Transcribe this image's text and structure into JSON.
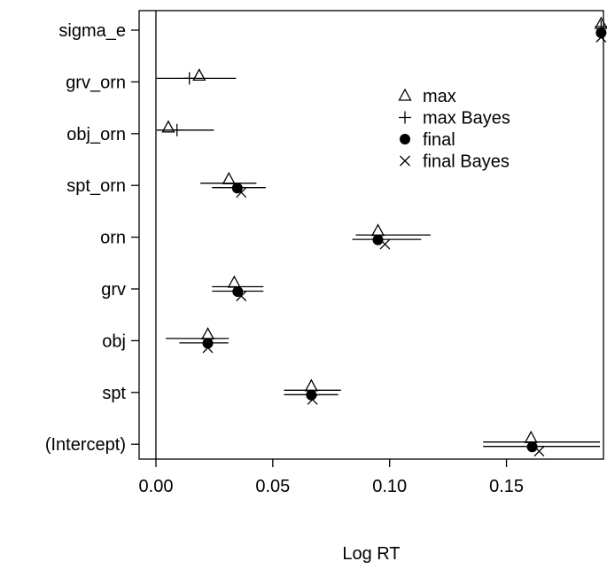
{
  "chart_data": {
    "type": "scatter",
    "title": "",
    "xlabel": "Log RT",
    "ylabel": "",
    "xlim": [
      -0.0072,
      0.1915
    ],
    "xticks": [
      0.0,
      0.05,
      0.1,
      0.15
    ],
    "xtick_labels": [
      "0.00",
      "0.05",
      "0.10",
      "0.15"
    ],
    "reference_line_x": 0,
    "categories": [
      "sigma_e",
      "grv_orn",
      "obj_orn",
      "spt_orn",
      "orn",
      "grv",
      "obj",
      "spt",
      "(Intercept)"
    ],
    "legend": {
      "position": "upper-right",
      "entries": [
        {
          "symbol": "triangle",
          "label": "max"
        },
        {
          "symbol": "plus",
          "label": "max Bayes"
        },
        {
          "symbol": "dot",
          "label": "final"
        },
        {
          "symbol": "cross",
          "label": "final Bayes"
        }
      ]
    },
    "series": [
      {
        "name": "max",
        "symbol": "triangle",
        "values": [
          0.1905,
          0.0185,
          0.0053,
          0.0312,
          0.095,
          0.0335,
          0.0222,
          0.0665,
          0.1605
        ]
      },
      {
        "name": "max Bayes",
        "symbol": "plus",
        "values": [
          0.1905,
          0.0143,
          0.009,
          null,
          null,
          null,
          null,
          null,
          null
        ],
        "intervals": [
          null,
          [
            0.0003,
            0.0343
          ],
          [
            0.0003,
            0.0248
          ],
          null,
          null,
          null,
          null,
          null,
          null
        ]
      },
      {
        "name": "final",
        "symbol": "dot",
        "values": [
          0.1905,
          null,
          null,
          0.0348,
          0.095,
          0.035,
          0.0222,
          0.0665,
          0.161
        ],
        "intervals": [
          null,
          null,
          null,
          [
            0.019,
            0.043
          ],
          [
            0.0855,
            0.1175
          ],
          [
            0.024,
            0.046
          ],
          [
            0.0042,
            0.0312
          ],
          [
            0.0548,
            0.0792
          ],
          [
            0.14,
            0.19
          ]
        ]
      },
      {
        "name": "final Bayes",
        "symbol": "cross",
        "values": [
          0.1905,
          null,
          null,
          0.0365,
          0.098,
          0.0365,
          0.0222,
          0.067,
          0.164
        ],
        "intervals": [
          null,
          null,
          null,
          [
            0.024,
            0.047
          ],
          [
            0.084,
            0.1135
          ],
          [
            0.024,
            0.046
          ],
          [
            0.01,
            0.031
          ],
          [
            0.0548,
            0.078
          ],
          [
            0.14,
            0.19
          ]
        ]
      }
    ]
  }
}
